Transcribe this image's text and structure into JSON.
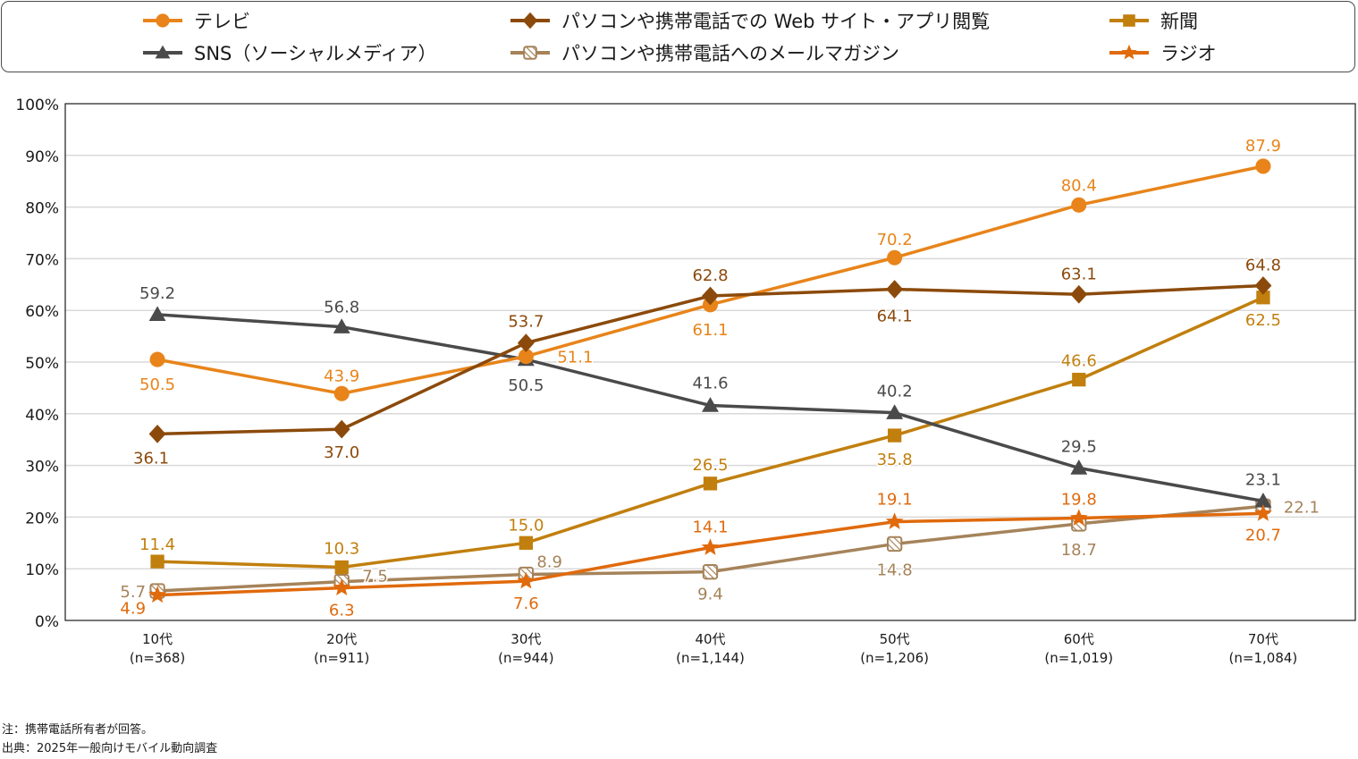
{
  "chart_data": {
    "type": "line",
    "title": "",
    "xlabel": "",
    "ylabel": "",
    "ylim": [
      0,
      100
    ],
    "yticks": [
      "0%",
      "10%",
      "20%",
      "30%",
      "40%",
      "50%",
      "60%",
      "70%",
      "80%",
      "90%",
      "100%"
    ],
    "categories": [
      "10代",
      "20代",
      "30代",
      "40代",
      "50代",
      "60代",
      "70代"
    ],
    "category_sublabels": [
      "(n=368)",
      "(n=911)",
      "(n=944)",
      "(n=1,144)",
      "(n=1,206)",
      "(n=1,019)",
      "(n=1,084)"
    ],
    "grid": true,
    "legend_position": "top",
    "series": [
      {
        "name": "テレビ",
        "marker": "circle",
        "color": "#E8841A",
        "values": [
          50.5,
          43.9,
          51.1,
          61.1,
          70.2,
          80.4,
          87.9
        ],
        "labels": [
          "50.5",
          "43.9",
          "51.1",
          "61.1",
          "70.2",
          "80.4",
          "87.9"
        ]
      },
      {
        "name": "パソコンや携帯電話での Web サイト・アプリ閲覧",
        "marker": "diamond",
        "color": "#8B4A0B",
        "values": [
          36.1,
          37.0,
          53.7,
          62.8,
          64.1,
          63.1,
          64.8
        ],
        "labels": [
          "36.1",
          "37.0",
          "53.7",
          "62.8",
          "64.1",
          "63.1",
          "64.8"
        ]
      },
      {
        "name": "新聞",
        "marker": "square",
        "color": "#C17F0E",
        "values": [
          11.4,
          10.3,
          15.0,
          26.5,
          35.8,
          46.6,
          62.5
        ],
        "labels": [
          "11.4",
          "10.3",
          "15.0",
          "26.5",
          "35.8",
          "46.6",
          "62.5"
        ]
      },
      {
        "name": "SNS（ソーシャルメディア）",
        "marker": "triangle",
        "color": "#4A4A4A",
        "values": [
          59.2,
          56.8,
          50.5,
          41.6,
          40.2,
          29.5,
          23.1
        ],
        "labels": [
          "59.2",
          "56.8",
          "50.5",
          "41.6",
          "40.2",
          "29.5",
          "23.1"
        ]
      },
      {
        "name": "パソコンや携帯電話へのメールマガジン",
        "marker": "hatched-square",
        "color": "#A5835A",
        "values": [
          5.7,
          7.5,
          8.9,
          9.4,
          14.8,
          18.7,
          22.1
        ],
        "labels": [
          "5.7",
          "7.5",
          "8.9",
          "9.4",
          "14.8",
          "18.7",
          "22.1"
        ]
      },
      {
        "name": "ラジオ",
        "marker": "star",
        "color": "#E06A0C",
        "values": [
          4.9,
          6.3,
          7.6,
          14.1,
          19.1,
          19.8,
          20.7
        ],
        "labels": [
          "4.9",
          "6.3",
          "7.6",
          "14.1",
          "19.1",
          "19.8",
          "20.7"
        ]
      }
    ]
  },
  "notes": {
    "note": "注：携帯電話所有者が回答。",
    "source": "出典：2025年一般向けモバイル動向調査"
  }
}
